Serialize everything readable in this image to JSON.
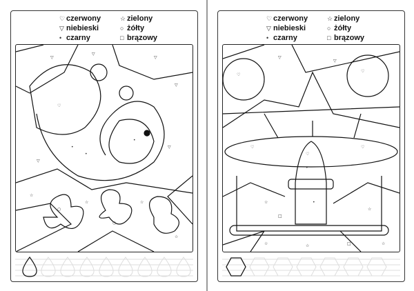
{
  "legend": [
    {
      "symbol": "heart",
      "glyph": "♡",
      "label": "czerwony"
    },
    {
      "symbol": "triangle",
      "glyph": "▽",
      "label": "niebieski"
    },
    {
      "symbol": "dot",
      "glyph": "•",
      "label": "czarny"
    },
    {
      "symbol": "star",
      "glyph": "☆",
      "label": "zielony"
    },
    {
      "symbol": "circle",
      "glyph": "○",
      "label": "żółty"
    },
    {
      "symbol": "square",
      "glyph": "□",
      "label": "brązowy"
    }
  ],
  "pages": [
    {
      "picture": "snail-and-flowers",
      "trace_shape": "drop"
    },
    {
      "picture": "mushroom",
      "trace_shape": "hexagon"
    }
  ]
}
